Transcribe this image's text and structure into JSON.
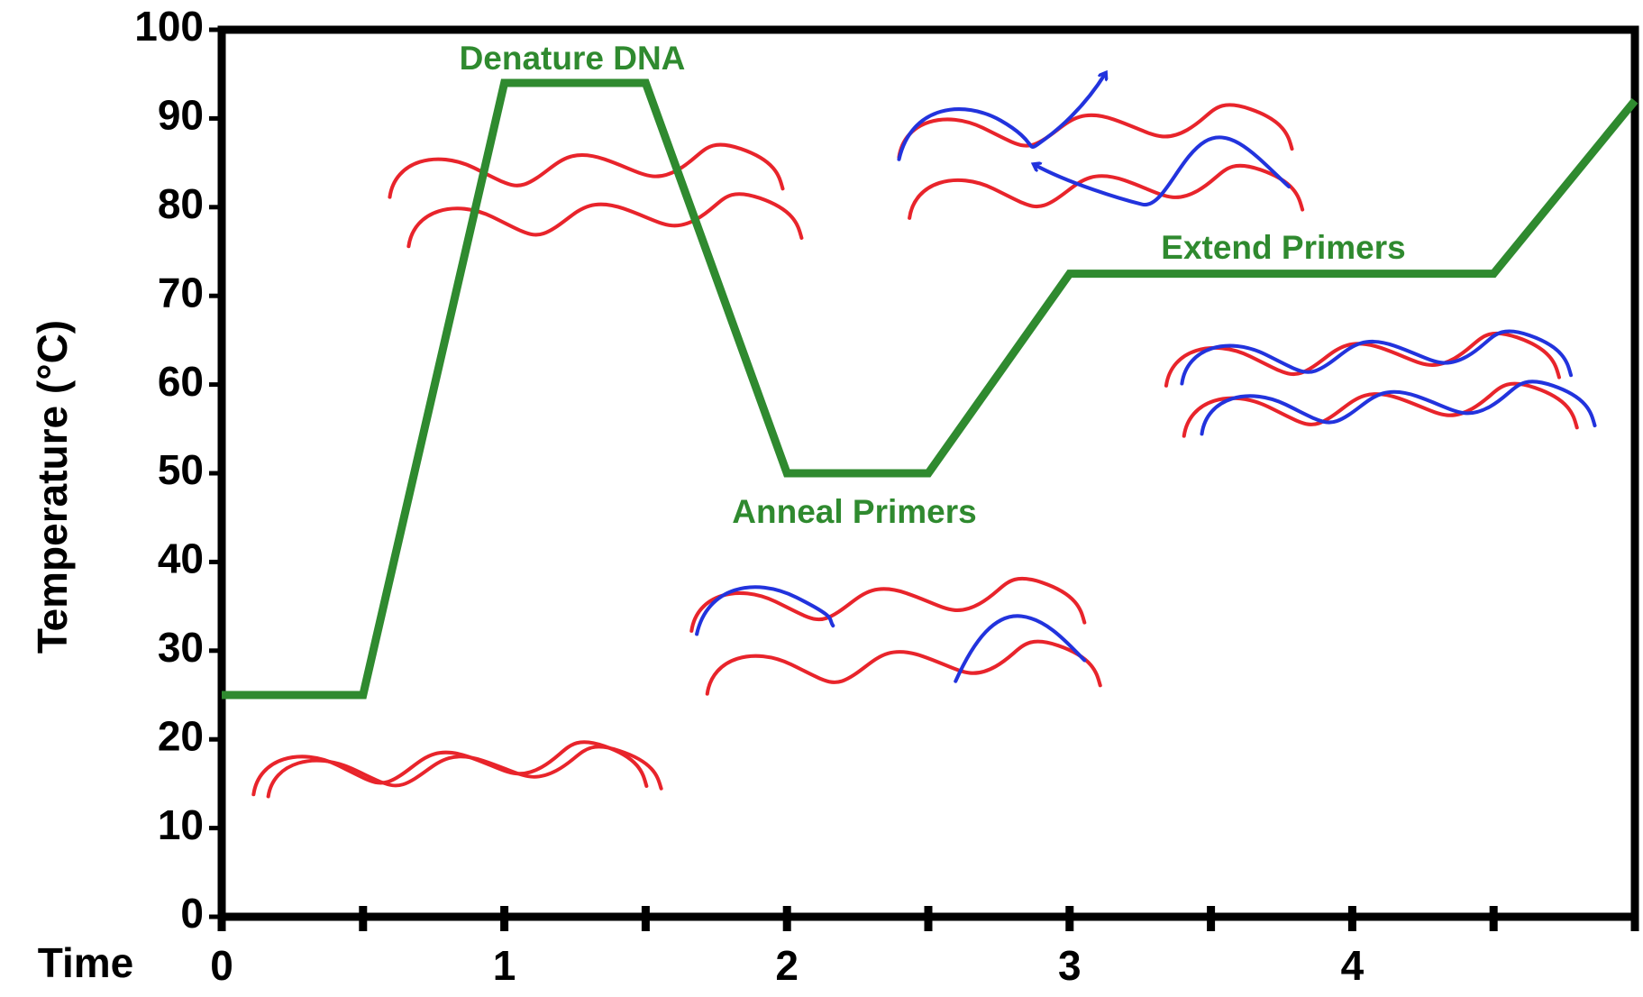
{
  "chart_data": {
    "type": "line",
    "x": [
      0,
      0.5,
      1,
      1.5,
      2,
      2.5,
      3,
      4.5,
      5
    ],
    "values": [
      25,
      25,
      94,
      94,
      50,
      50,
      72.5,
      72.5,
      92
    ],
    "color": "#2f8a2f",
    "xlabel": "Time",
    "ylabel": "Temperature (°C)",
    "xlim": [
      0,
      5
    ],
    "ylim": [
      0,
      100
    ],
    "xticks": [
      0,
      1,
      2,
      3,
      4
    ],
    "minor_xticks": [
      0.5,
      1.5,
      2.5,
      3.5,
      4.5,
      5
    ],
    "yticks": [
      0,
      10,
      20,
      30,
      40,
      50,
      60,
      70,
      80,
      90,
      100
    ],
    "grid": false,
    "annotations": [
      "Denature DNA",
      "Anneal Primers",
      "Extend Primers"
    ]
  }
}
